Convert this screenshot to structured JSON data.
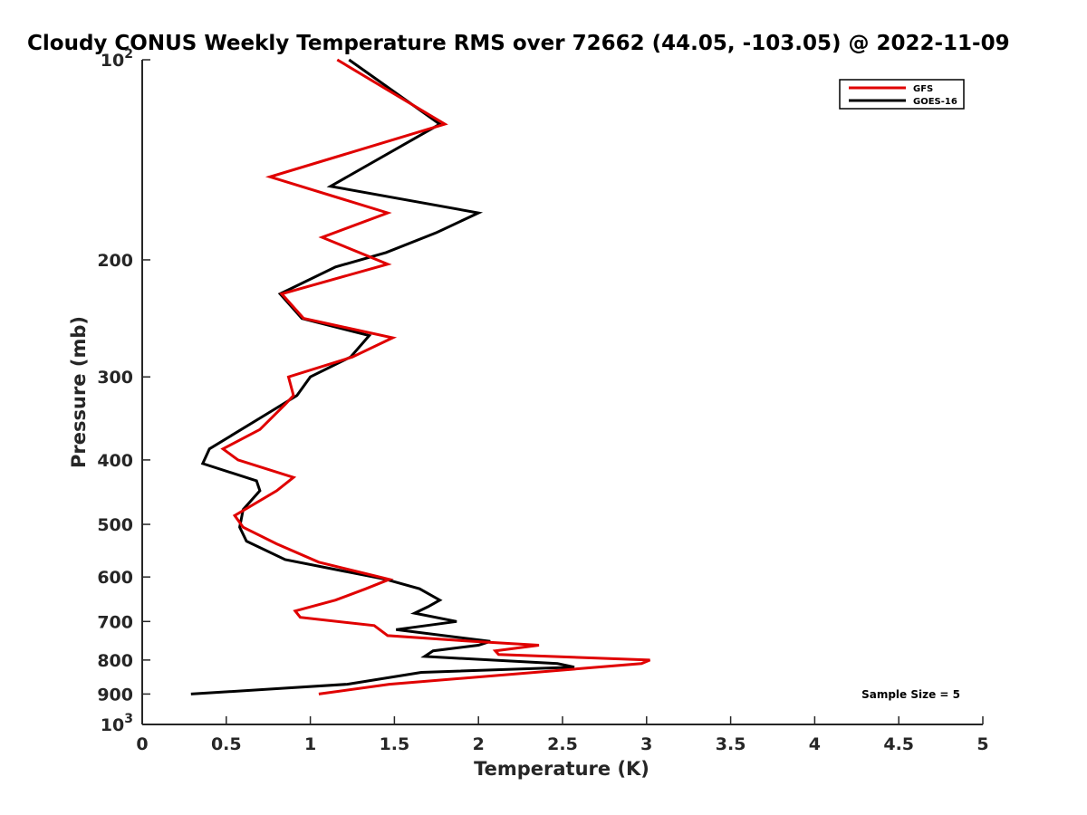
{
  "chart_data": {
    "type": "line",
    "title": "Cloudy CONUS Weekly Temperature RMS over 72662 (44.05, -103.05) @ 2022-11-09",
    "xlabel": "Temperature (K)",
    "ylabel": "Pressure (mb)",
    "xlim": [
      0,
      5
    ],
    "ylim": [
      100,
      1000
    ],
    "y_scale": "log",
    "y_reversed": true,
    "x_ticks": [
      0,
      0.5,
      1,
      1.5,
      2,
      2.5,
      3,
      3.5,
      4,
      4.5,
      5
    ],
    "x_tick_labels": [
      "0",
      "0.5",
      "1",
      "1.5",
      "2",
      "2.5",
      "3",
      "3.5",
      "4",
      "4.5",
      "5"
    ],
    "y_ticks": [
      100,
      200,
      300,
      400,
      500,
      600,
      700,
      800,
      900,
      1000
    ],
    "y_tick_labels": [
      {
        "base": "10",
        "exp": "2"
      },
      {
        "base": "200",
        "exp": ""
      },
      {
        "base": "300",
        "exp": ""
      },
      {
        "base": "400",
        "exp": ""
      },
      {
        "base": "500",
        "exp": ""
      },
      {
        "base": "600",
        "exp": ""
      },
      {
        "base": "700",
        "exp": ""
      },
      {
        "base": "800",
        "exp": ""
      },
      {
        "base": "900",
        "exp": ""
      },
      {
        "base": "10",
        "exp": "3"
      }
    ],
    "grid": false,
    "legend_position": "top-right",
    "annotation": "Sample Size = 5",
    "series": [
      {
        "name": "GFS",
        "color": "#e00000",
        "points": [
          [
            1.16,
            100
          ],
          [
            1.8,
            125
          ],
          [
            0.76,
            150
          ],
          [
            1.46,
            170
          ],
          [
            1.07,
            185
          ],
          [
            1.46,
            203
          ],
          [
            0.83,
            225
          ],
          [
            0.96,
            245
          ],
          [
            1.49,
            262
          ],
          [
            1.25,
            280
          ],
          [
            0.87,
            300
          ],
          [
            0.9,
            320
          ],
          [
            0.85,
            330
          ],
          [
            0.7,
            360
          ],
          [
            0.48,
            385
          ],
          [
            0.57,
            400
          ],
          [
            0.9,
            425
          ],
          [
            0.8,
            445
          ],
          [
            0.55,
            485
          ],
          [
            0.6,
            505
          ],
          [
            0.8,
            535
          ],
          [
            1.05,
            570
          ],
          [
            1.47,
            605
          ],
          [
            1.33,
            625
          ],
          [
            1.15,
            650
          ],
          [
            0.91,
            675
          ],
          [
            0.94,
            690
          ],
          [
            1.38,
            710
          ],
          [
            1.46,
            735
          ],
          [
            1.97,
            750
          ],
          [
            2.36,
            760
          ],
          [
            2.1,
            775
          ],
          [
            2.12,
            785
          ],
          [
            3.02,
            800
          ],
          [
            2.97,
            810
          ],
          [
            1.47,
            870
          ],
          [
            1.05,
            900
          ]
        ]
      },
      {
        "name": "GOES-16",
        "color": "#000000",
        "points": [
          [
            1.23,
            100
          ],
          [
            1.77,
            125
          ],
          [
            1.12,
            155
          ],
          [
            2.0,
            170
          ],
          [
            1.75,
            182
          ],
          [
            1.45,
            195
          ],
          [
            1.15,
            205
          ],
          [
            0.82,
            225
          ],
          [
            0.95,
            245
          ],
          [
            1.35,
            260
          ],
          [
            1.24,
            280
          ],
          [
            1.0,
            300
          ],
          [
            0.92,
            320
          ],
          [
            0.75,
            340
          ],
          [
            0.55,
            365
          ],
          [
            0.4,
            385
          ],
          [
            0.36,
            405
          ],
          [
            0.68,
            430
          ],
          [
            0.7,
            445
          ],
          [
            0.6,
            475
          ],
          [
            0.58,
            505
          ],
          [
            0.62,
            530
          ],
          [
            0.85,
            565
          ],
          [
            1.45,
            605
          ],
          [
            1.65,
            625
          ],
          [
            1.77,
            650
          ],
          [
            1.7,
            665
          ],
          [
            1.62,
            680
          ],
          [
            1.87,
            700
          ],
          [
            1.51,
            720
          ],
          [
            2.07,
            750
          ],
          [
            2.0,
            760
          ],
          [
            1.73,
            775
          ],
          [
            1.68,
            790
          ],
          [
            2.47,
            810
          ],
          [
            2.57,
            820
          ],
          [
            1.66,
            835
          ],
          [
            1.22,
            870
          ],
          [
            0.29,
            900
          ]
        ]
      }
    ]
  }
}
